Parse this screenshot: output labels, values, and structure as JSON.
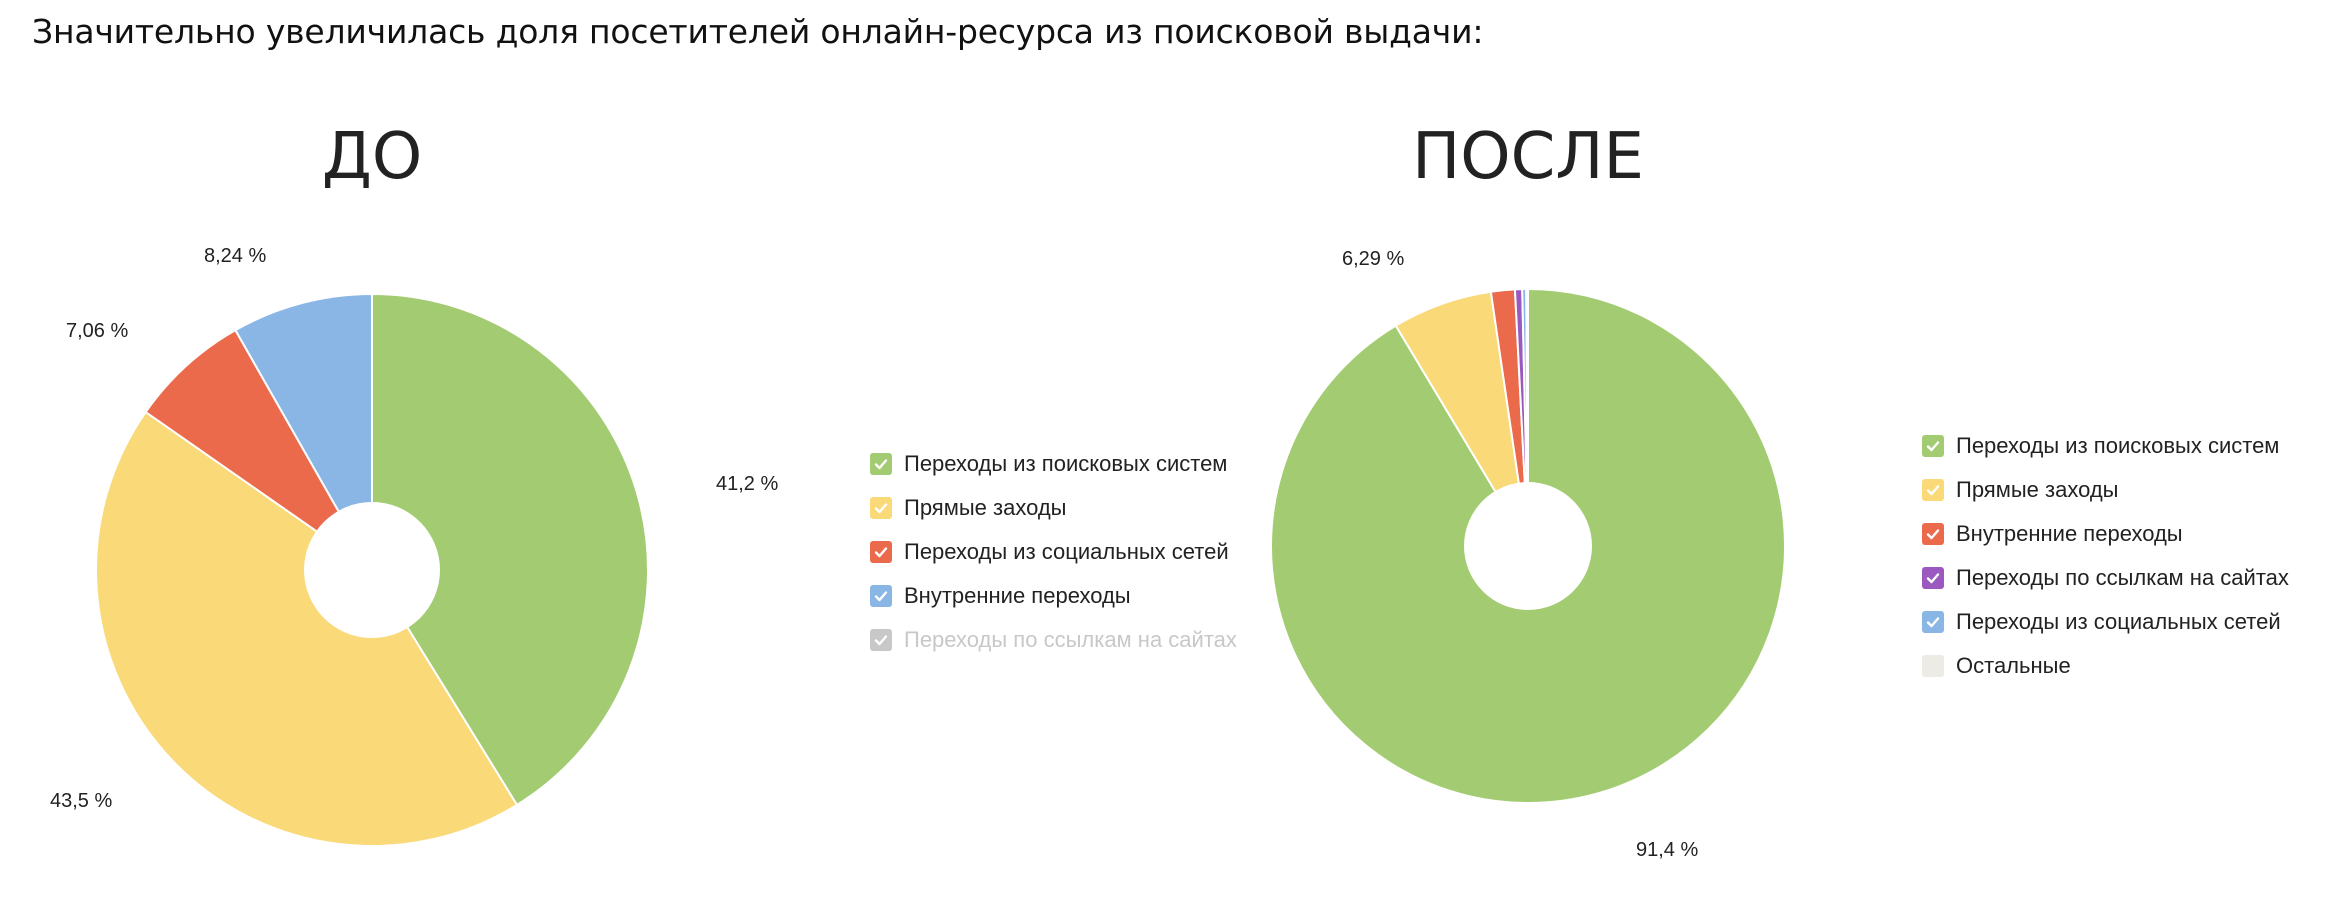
{
  "headline": "Значительно увеличилась доля посетителей онлайн-ресурса из поисковой выдачи:",
  "chart_data": [
    {
      "type": "pie",
      "title": "ДО",
      "hole": true,
      "series": [
        {
          "name": "Переходы из поисковых систем",
          "value": 41.2,
          "label": "41,2 %",
          "color": "#a3cb72",
          "enabled": true
        },
        {
          "name": "Прямые заходы",
          "value": 43.5,
          "label": "43,5 %",
          "color": "#f9d978",
          "enabled": true
        },
        {
          "name": "Переходы из социальных сетей",
          "value": 7.06,
          "label": "7,06 %",
          "color": "#ec6a4c",
          "enabled": true
        },
        {
          "name": "Внутренние переходы",
          "value": 8.24,
          "label": "8,24 %",
          "color": "#8ab6e6",
          "enabled": true
        },
        {
          "name": "Переходы по ссылкам на сайтах",
          "value": 0,
          "label": "",
          "color": "#c8c8c8",
          "enabled": false
        }
      ]
    },
    {
      "type": "pie",
      "title": "ПОСЛЕ",
      "hole": true,
      "series": [
        {
          "name": "Переходы из поисковых систем",
          "value": 91.4,
          "label": "91,4 %",
          "color": "#a3cb72",
          "enabled": true
        },
        {
          "name": "Прямые заходы",
          "value": 6.29,
          "label": "6,29 %",
          "color": "#f9d978",
          "enabled": true
        },
        {
          "name": "Внутренние переходы",
          "value": 1.5,
          "label": "",
          "color": "#ec6a4c",
          "enabled": true
        },
        {
          "name": "Переходы по ссылкам на сайтах",
          "value": 0.45,
          "label": "",
          "color": "#9b59c0",
          "enabled": true
        },
        {
          "name": "Переходы из социальных сетей",
          "value": 0.25,
          "label": "",
          "color": "#8ab6e6",
          "enabled": true
        },
        {
          "name": "Остальные",
          "value": 0.11,
          "label": "",
          "color": "#ecebe6",
          "enabled": true
        }
      ]
    }
  ]
}
